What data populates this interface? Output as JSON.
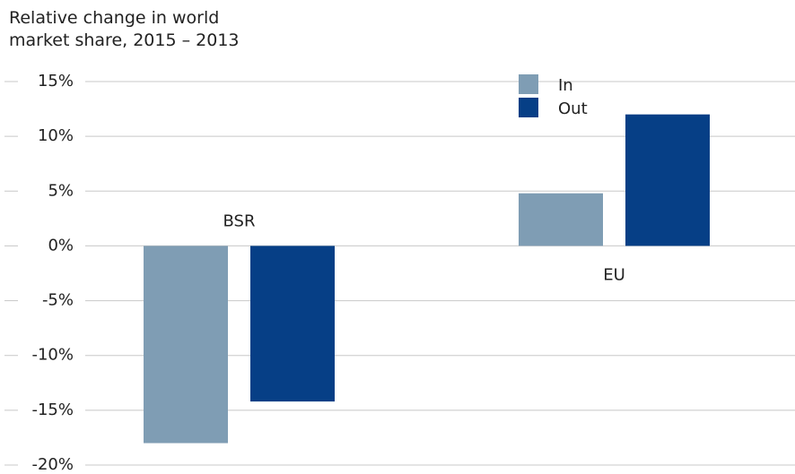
{
  "chart_data": {
    "type": "bar",
    "title": "Relative change in world market share, 2015 – 2013",
    "categories": [
      "BSR",
      "EU"
    ],
    "series": [
      {
        "name": "In",
        "color": "#7f9db4",
        "values": [
          -18,
          4.8
        ]
      },
      {
        "name": "Out",
        "color": "#063f86",
        "values": [
          -14.2,
          12
        ]
      }
    ],
    "ylim": [
      -20,
      15
    ],
    "yticks": [
      {
        "value": -20,
        "label": "-20%"
      },
      {
        "value": -15,
        "label": "-15%"
      },
      {
        "value": -10,
        "label": "-10%"
      },
      {
        "value": -5,
        "label": "-5%"
      },
      {
        "value": 0,
        "label": "0%"
      },
      {
        "value": 5,
        "label": "5%"
      },
      {
        "value": 10,
        "label": "10%"
      },
      {
        "value": 15,
        "label": "15%"
      }
    ],
    "grid": true,
    "legend": "top"
  }
}
